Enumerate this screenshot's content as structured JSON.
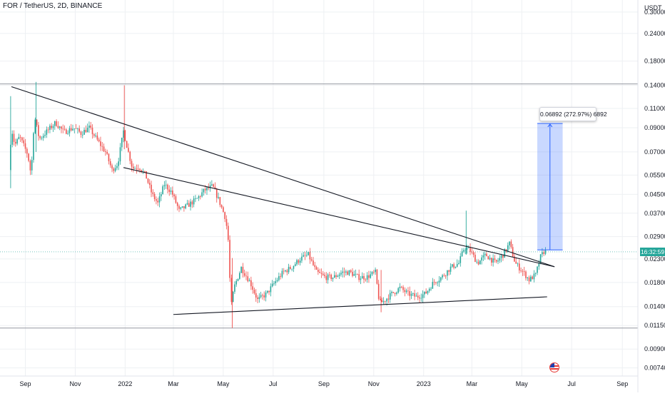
{
  "header": {
    "title": "FOR / TetherUS, 2D, BINANCE"
  },
  "price_axis": {
    "currency": "USDT",
    "ticks": [
      "0.30000",
      "0.24000",
      "0.18000",
      "0.14000",
      "0.11000",
      "0.09000",
      "0.07000",
      "0.05500",
      "0.04500",
      "0.03700",
      "0.02900",
      "0.02300",
      "0.01800",
      "0.01400",
      "0.01150",
      "0.00900",
      "0.00740"
    ]
  },
  "countdown_label": "16:32:59",
  "measure_label": "0.06892 (272.97%) 6892",
  "colors": {
    "up": "#26a69a",
    "down": "#ef5350",
    "trendline": "#131722",
    "measure_fill": "#2962ff",
    "grid": "#eef0f3"
  },
  "icons": {
    "flag": "us-flag-icon"
  },
  "chart_data": {
    "type": "candlestick",
    "scale": "log",
    "timeframe": "2D",
    "x_ticks": [
      "Sep",
      "Nov",
      "2022",
      "Mar",
      "May",
      "Jul",
      "Sep",
      "Nov",
      "2023",
      "Mar",
      "May",
      "Jul",
      "Sep"
    ],
    "y_range": [
      0.0068,
      0.34
    ],
    "x_range": [
      "2021-08-01",
      "2023-09-20"
    ],
    "horizontal_levels": [
      0.142,
      0.0112
    ],
    "trendlines": [
      {
        "from": [
          "2021-08-15",
          0.138
        ],
        "to": [
          "2023-06-10",
          0.0212
        ]
      },
      {
        "from": [
          "2021-12-30",
          0.0595
        ],
        "to": [
          "2023-06-10",
          0.0212
        ]
      },
      {
        "from": [
          "2022-03-01",
          0.0129
        ],
        "to": [
          "2023-06-01",
          0.0155
        ]
      }
    ],
    "measure": {
      "start_date": "2023-05-20",
      "end_date": "2023-06-20",
      "low": 0.02525,
      "high": 0.09417,
      "change": 0.06892,
      "change_pct": 272.97,
      "ticks": 6892
    },
    "last_price": 0.02475,
    "anchors": [
      [
        "2021-08-14",
        0.058
      ],
      [
        "2021-08-17",
        0.09
      ],
      [
        "2021-08-21",
        0.075
      ],
      [
        "2021-08-27",
        0.082
      ],
      [
        "2021-09-06",
        0.068
      ],
      [
        "2021-09-10",
        0.055
      ],
      [
        "2021-09-14",
        0.102
      ],
      [
        "2021-09-20",
        0.08
      ],
      [
        "2021-10-01",
        0.088
      ],
      [
        "2021-10-10",
        0.095
      ],
      [
        "2021-10-20",
        0.086
      ],
      [
        "2021-11-01",
        0.09
      ],
      [
        "2021-11-10",
        0.085
      ],
      [
        "2021-11-20",
        0.09
      ],
      [
        "2021-12-01",
        0.078
      ],
      [
        "2021-12-10",
        0.07
      ],
      [
        "2021-12-18",
        0.058
      ],
      [
        "2021-12-25",
        0.062
      ],
      [
        "2022-01-01",
        0.087
      ],
      [
        "2022-01-06",
        0.072
      ],
      [
        "2022-01-12",
        0.059
      ],
      [
        "2022-01-20",
        0.06
      ],
      [
        "2022-01-28",
        0.055
      ],
      [
        "2022-02-05",
        0.045
      ],
      [
        "2022-02-12",
        0.041
      ],
      [
        "2022-02-20",
        0.05
      ],
      [
        "2022-03-01",
        0.046
      ],
      [
        "2022-03-10",
        0.038
      ],
      [
        "2022-03-20",
        0.04
      ],
      [
        "2022-04-01",
        0.043
      ],
      [
        "2022-04-10",
        0.047
      ],
      [
        "2022-04-20",
        0.049
      ],
      [
        "2022-04-28",
        0.042
      ],
      [
        "2022-05-06",
        0.035
      ],
      [
        "2022-05-10",
        0.026
      ],
      [
        "2022-05-12",
        0.0135
      ],
      [
        "2022-05-16",
        0.017
      ],
      [
        "2022-05-25",
        0.021
      ],
      [
        "2022-06-05",
        0.018
      ],
      [
        "2022-06-14",
        0.015
      ],
      [
        "2022-06-25",
        0.016
      ],
      [
        "2022-07-05",
        0.018
      ],
      [
        "2022-07-15",
        0.02
      ],
      [
        "2022-07-25",
        0.021
      ],
      [
        "2022-08-05",
        0.023
      ],
      [
        "2022-08-15",
        0.024
      ],
      [
        "2022-08-25",
        0.02
      ],
      [
        "2022-09-05",
        0.019
      ],
      [
        "2022-09-15",
        0.019
      ],
      [
        "2022-09-25",
        0.02
      ],
      [
        "2022-10-05",
        0.02
      ],
      [
        "2022-10-15",
        0.019
      ],
      [
        "2022-10-25",
        0.019
      ],
      [
        "2022-11-05",
        0.02
      ],
      [
        "2022-11-10",
        0.0145
      ],
      [
        "2022-11-15",
        0.0148
      ],
      [
        "2022-11-25",
        0.016
      ],
      [
        "2022-12-05",
        0.017
      ],
      [
        "2022-12-15",
        0.016
      ],
      [
        "2022-12-25",
        0.0155
      ],
      [
        "2023-01-05",
        0.016
      ],
      [
        "2023-01-15",
        0.018
      ],
      [
        "2023-01-25",
        0.019
      ],
      [
        "2023-02-05",
        0.021
      ],
      [
        "2023-02-15",
        0.022
      ],
      [
        "2023-02-22",
        0.026
      ],
      [
        "2023-03-01",
        0.025
      ],
      [
        "2023-03-10",
        0.022
      ],
      [
        "2023-03-20",
        0.024
      ],
      [
        "2023-04-01",
        0.022
      ],
      [
        "2023-04-10",
        0.024
      ],
      [
        "2023-04-18",
        0.027
      ],
      [
        "2023-04-25",
        0.022
      ],
      [
        "2023-05-05",
        0.02
      ],
      [
        "2023-05-12",
        0.0185
      ],
      [
        "2023-05-20",
        0.0195
      ],
      [
        "2023-05-26",
        0.0235
      ],
      [
        "2023-05-30",
        0.0248
      ]
    ]
  }
}
